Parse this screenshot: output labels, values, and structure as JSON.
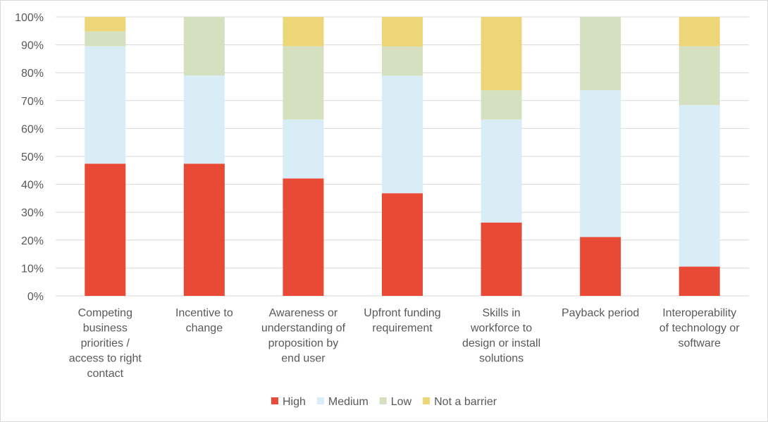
{
  "chart_data": {
    "type": "bar",
    "stacked": true,
    "percent_stacked": true,
    "categories": [
      [
        "Competing",
        "business",
        "priorities /",
        "access to right",
        "contact"
      ],
      [
        "Incentive to",
        "change"
      ],
      [
        "Awareness or",
        "understanding of",
        "proposition by",
        "end user"
      ],
      [
        "Upfront funding",
        "requirement"
      ],
      [
        "Skills in",
        "workforce to",
        "design or install",
        "solutions"
      ],
      [
        "Payback period"
      ],
      [
        "Interoperability",
        "of technology or",
        "software"
      ]
    ],
    "series": [
      {
        "name": "High",
        "color": "#e84a35",
        "values": [
          47.4,
          47.4,
          42.1,
          36.8,
          26.3,
          21.1,
          10.5
        ]
      },
      {
        "name": "Medium",
        "color": "#d9edf7",
        "values": [
          42.1,
          31.6,
          21.1,
          42.1,
          36.9,
          52.6,
          57.9
        ]
      },
      {
        "name": "Low",
        "color": "#d5e0c0",
        "values": [
          5.3,
          21.0,
          26.3,
          10.5,
          10.5,
          26.3,
          21.1
        ]
      },
      {
        "name": "Not a barrier",
        "color": "#edd677",
        "values": [
          5.2,
          0.0,
          10.5,
          10.6,
          26.3,
          0.0,
          10.5
        ]
      }
    ],
    "ylim": [
      0,
      100
    ],
    "yticks": [
      "0%",
      "10%",
      "20%",
      "30%",
      "40%",
      "50%",
      "60%",
      "70%",
      "80%",
      "90%",
      "100%"
    ],
    "grid": true,
    "legend_position": "bottom",
    "gridline_color": "#d9d9d9",
    "text_color": "#595959"
  }
}
